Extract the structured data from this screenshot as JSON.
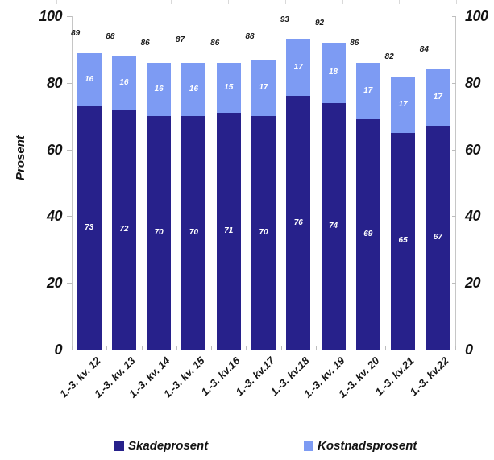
{
  "chart_data": {
    "type": "bar",
    "stacked": true,
    "title": "",
    "ylabel": "Prosent",
    "xlabel": "",
    "ylim": [
      0,
      100
    ],
    "y_ticks": [
      0,
      20,
      40,
      60,
      80,
      100
    ],
    "grid": false,
    "legend_position": "bottom",
    "axis_color": "#c6c6c6",
    "categories": [
      "1.-3. kv. 12",
      "1.-3. kv. 13",
      "1.-3. kv. 14",
      "1.-3. kv. 15",
      "1.-3. kv.16",
      "1.-3. kv.17",
      "1.-3. kv.18",
      "1.-3. kv. 19",
      "1.-3. kv. 20",
      "1.-3. kv.21",
      "1.-3. kv.22"
    ],
    "series": [
      {
        "name": "Skadeprosent",
        "color": "#27218b",
        "values": [
          73,
          72,
          70,
          70,
          71,
          70,
          76,
          74,
          69,
          65,
          67
        ]
      },
      {
        "name": "Kostnadsprosent",
        "color": "#7d9bf3",
        "values": [
          16,
          16,
          16,
          16,
          15,
          17,
          17,
          18,
          17,
          17,
          17
        ]
      }
    ],
    "totals": [
      89,
      88,
      86,
      87,
      86,
      88,
      93,
      92,
      86,
      82,
      84
    ]
  }
}
